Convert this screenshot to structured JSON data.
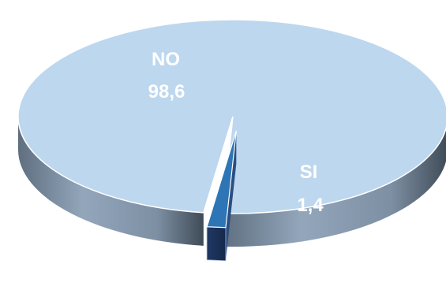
{
  "chart_data": {
    "type": "pie",
    "categories": [
      "NO",
      "SI"
    ],
    "values": [
      98.6,
      1.4
    ],
    "value_labels": [
      "98,6",
      "1,4"
    ],
    "colors": {
      "NO_top": "#bdd7ee",
      "NO_side": "#8497b0",
      "SI_top": "#2e75b6",
      "SI_side": "#1f3864"
    },
    "legend": "none",
    "title": ""
  }
}
